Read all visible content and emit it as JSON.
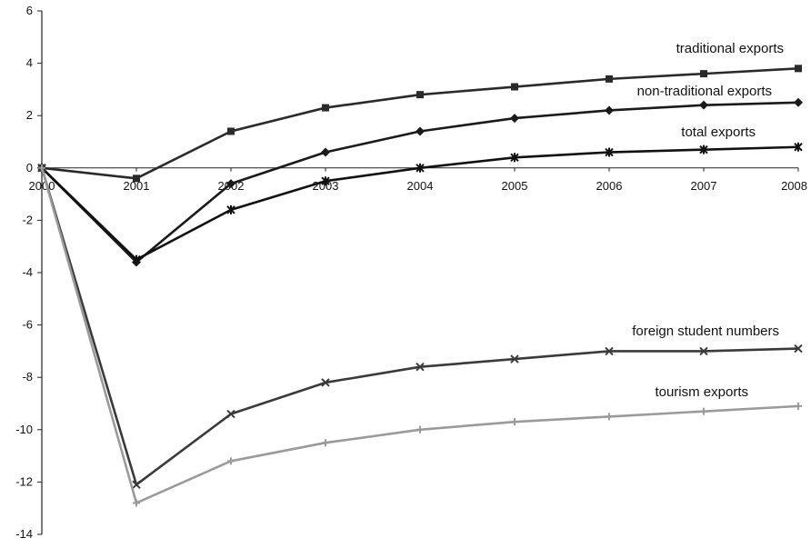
{
  "chart_data": {
    "type": "line",
    "x": [
      "2000",
      "2001",
      "2002",
      "2003",
      "2004",
      "2005",
      "2006",
      "2007",
      "2008"
    ],
    "ylim": [
      -14,
      6
    ],
    "yticks": [
      6,
      4,
      2,
      0,
      -2,
      -4,
      -6,
      -8,
      -10,
      -12,
      -14
    ],
    "grid": false,
    "series": [
      {
        "name": "traditional exports",
        "values": [
          0,
          -0.4,
          1.4,
          2.3,
          2.8,
          3.1,
          3.4,
          3.6,
          3.8
        ],
        "color": "#2a2a2a",
        "marker": "square"
      },
      {
        "name": "non-traditional exports",
        "values": [
          0,
          -3.6,
          -0.6,
          0.6,
          1.4,
          1.9,
          2.2,
          2.4,
          2.5
        ],
        "color": "#1a1a1a",
        "marker": "diamond"
      },
      {
        "name": "total exports",
        "values": [
          0,
          -3.5,
          -1.6,
          -0.5,
          0.0,
          0.4,
          0.6,
          0.7,
          0.8
        ],
        "color": "#111111",
        "marker": "star"
      },
      {
        "name": "foreign student numbers",
        "values": [
          0,
          -12.1,
          -9.4,
          -8.2,
          -7.6,
          -7.3,
          -7.0,
          -7.0,
          -6.9
        ],
        "color": "#3a3a3a",
        "marker": "x"
      },
      {
        "name": "tourism exports",
        "values": [
          0,
          -12.8,
          -11.2,
          -10.5,
          -10.0,
          -9.7,
          -9.5,
          -9.3,
          -9.1
        ],
        "color": "#9a9a9a",
        "marker": "cross"
      }
    ]
  }
}
